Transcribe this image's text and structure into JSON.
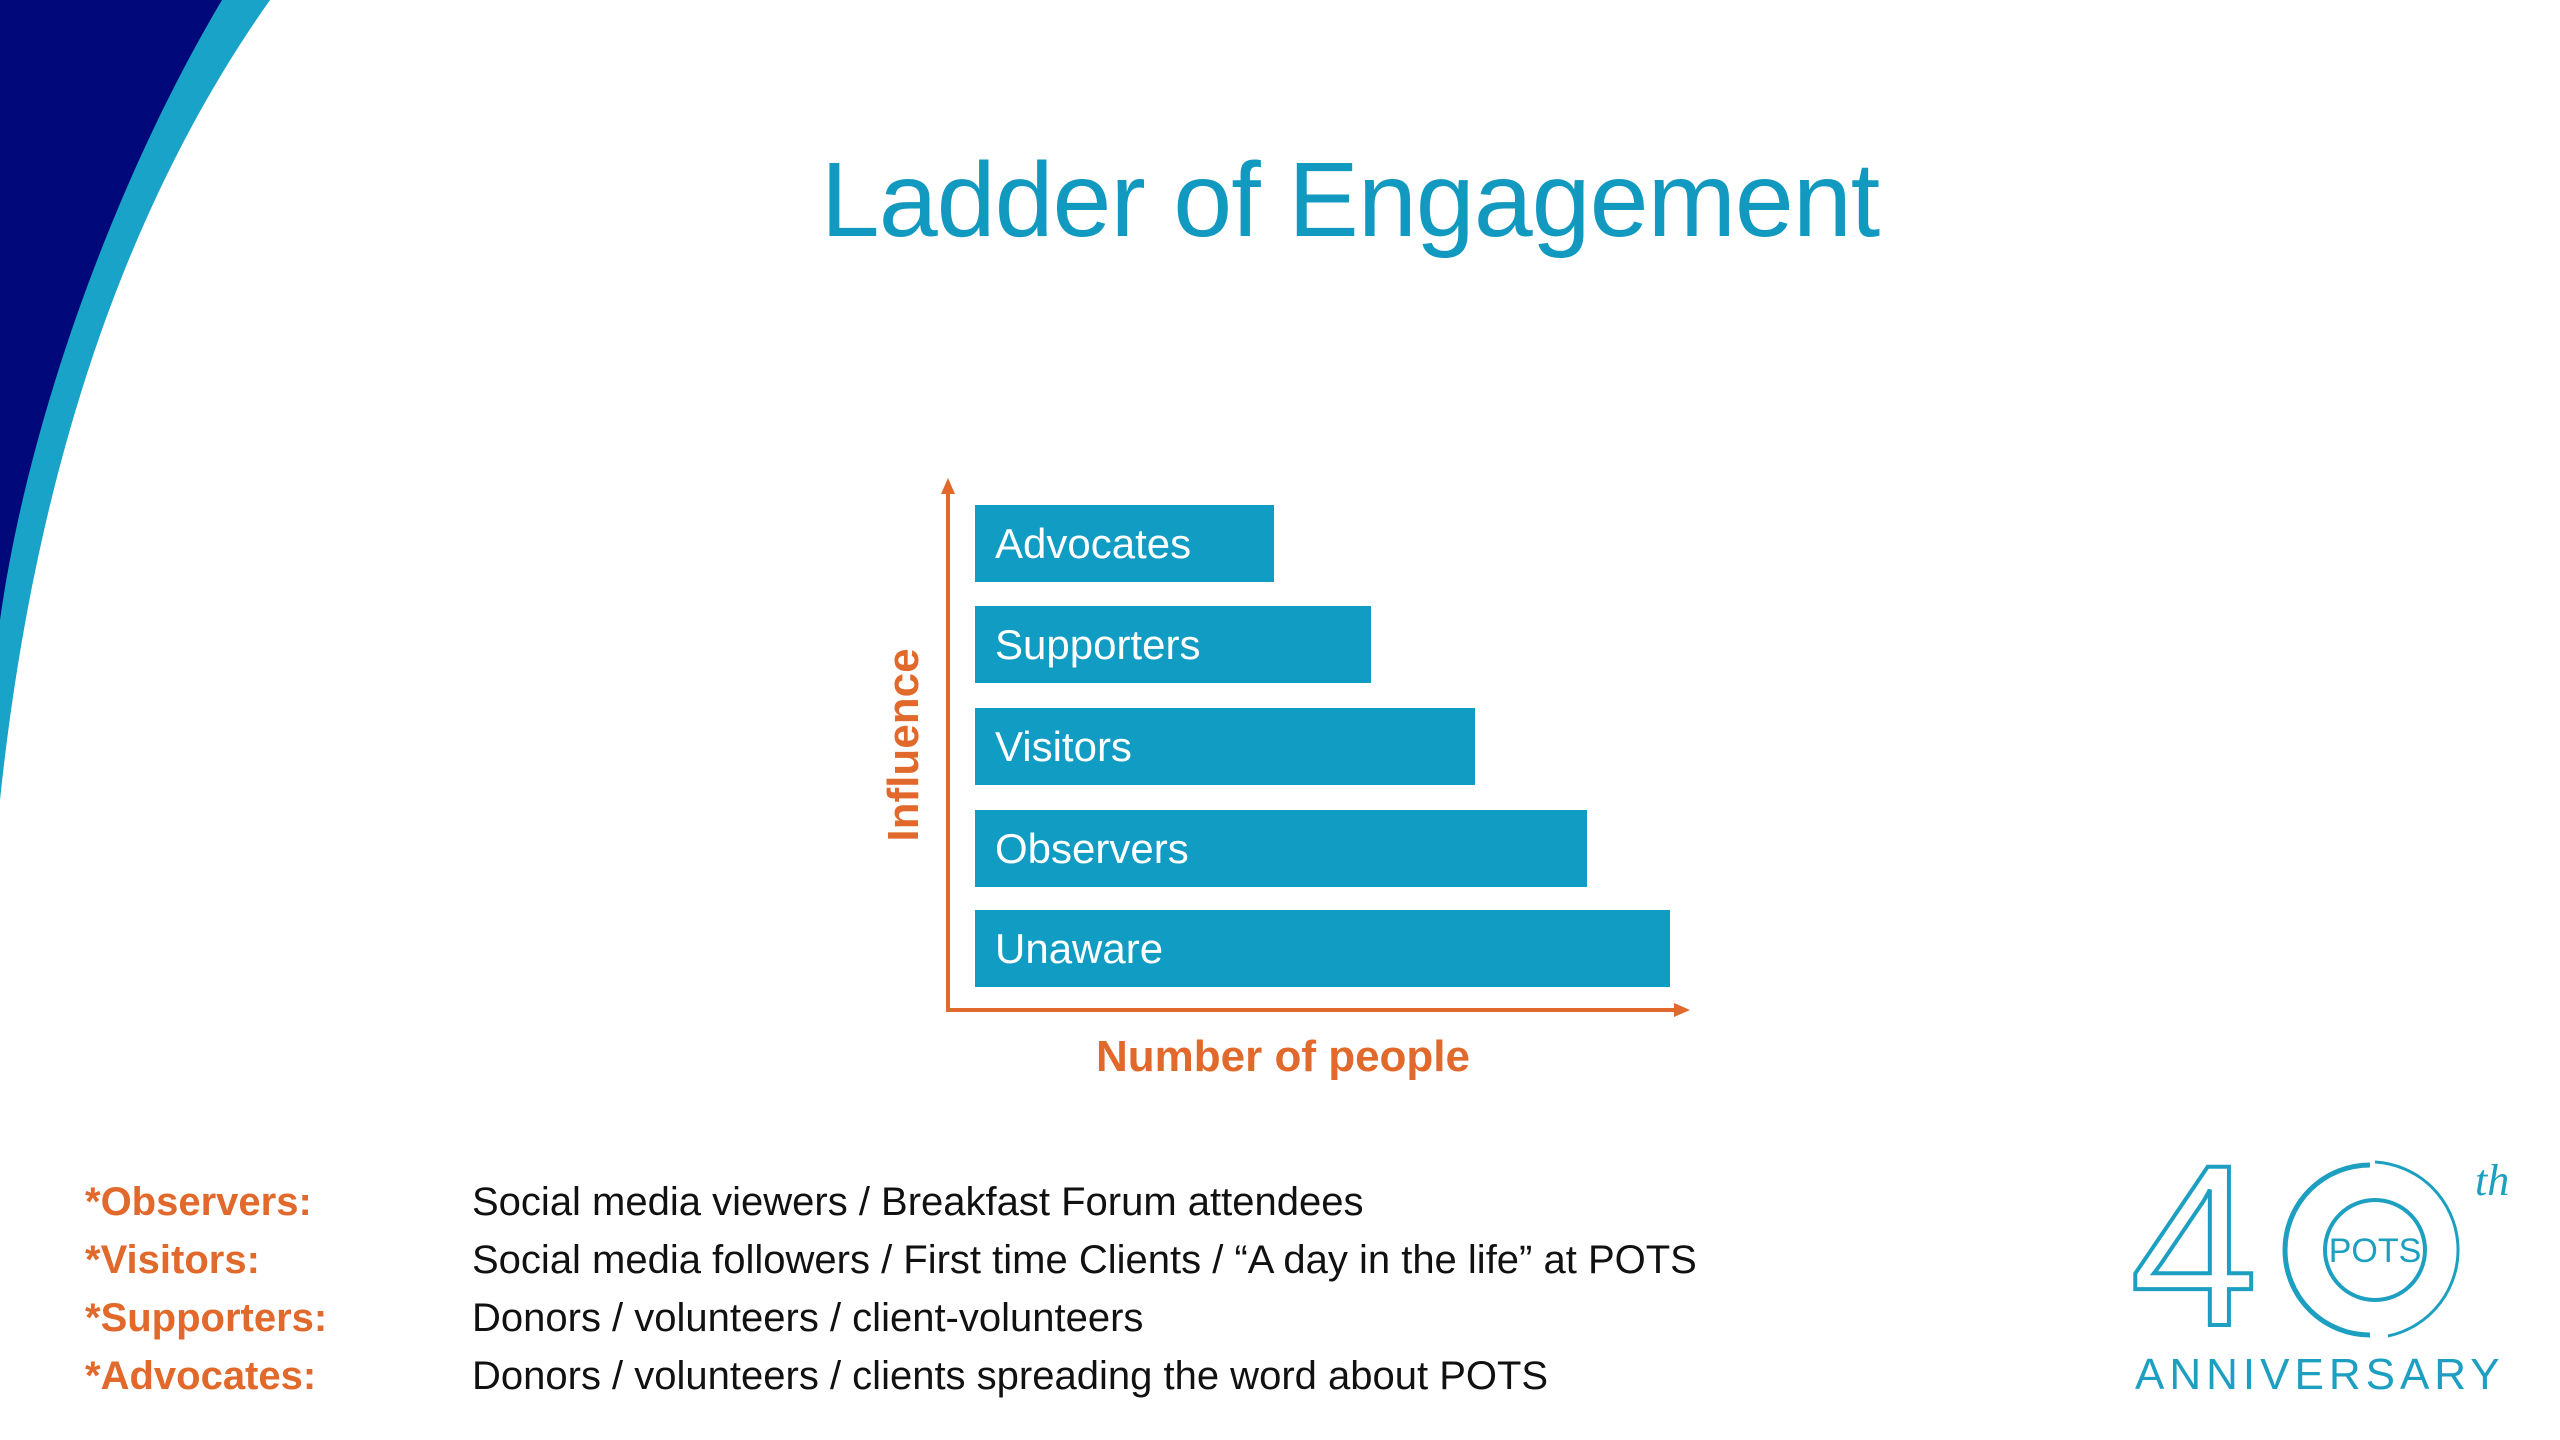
{
  "slide": {
    "title": "Ladder of Engagement"
  },
  "diagram": {
    "y_axis_label": "Influence",
    "x_axis_label": "Number of people",
    "levels": [
      {
        "label": "Advocates",
        "relative_width": 0.43
      },
      {
        "label": "Supporters",
        "relative_width": 0.57
      },
      {
        "label": "Visitors",
        "relative_width": 0.72
      },
      {
        "label": "Observers",
        "relative_width": 0.88
      },
      {
        "label": "Unaware",
        "relative_width": 1.0
      }
    ],
    "bar_color": "#119cc4",
    "axis_color": "#e0692b"
  },
  "legend": [
    {
      "term": "*Observers:",
      "description": "Social media viewers / Breakfast Forum attendees"
    },
    {
      "term": "*Visitors:",
      "description": "Social media followers / First time Clients / “A day in the life” at POTS"
    },
    {
      "term": "*Supporters:",
      "description": "Donors / volunteers / client-volunteers"
    },
    {
      "term": "*Advocates:",
      "description": "Donors / volunteers / clients spreading the word about POTS"
    }
  ],
  "logo": {
    "number_4": "4",
    "circle_text": "POTS",
    "suffix": "th",
    "word": "ANNIVERSARY",
    "color": "#1d9fc1"
  },
  "theme": {
    "title_color": "#1199c0",
    "swoosh_navy": "#00087a",
    "swoosh_blue": "#1aa3c8"
  }
}
